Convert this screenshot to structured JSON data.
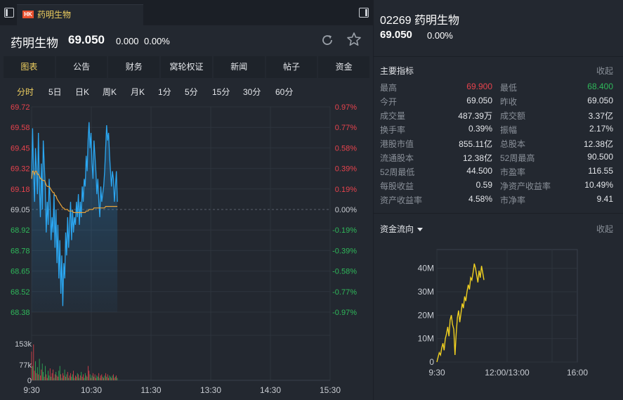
{
  "tab": {
    "badge": "HK",
    "title": "药明生物"
  },
  "quote": {
    "name": "药明生物",
    "price": "69.050",
    "change": "0.000",
    "change_pct": "0.00%"
  },
  "menu": [
    {
      "label": "图表",
      "active": true
    },
    {
      "label": "公告",
      "active": false
    },
    {
      "label": "财务",
      "active": false
    },
    {
      "label": "窝轮权证",
      "active": false
    },
    {
      "label": "新闻",
      "active": false
    },
    {
      "label": "帖子",
      "active": false
    },
    {
      "label": "资金",
      "active": false
    }
  ],
  "periods": [
    {
      "label": "分时",
      "active": true
    },
    {
      "label": "5日",
      "active": false
    },
    {
      "label": "日K",
      "active": false
    },
    {
      "label": "周K",
      "active": false
    },
    {
      "label": "月K",
      "active": false
    },
    {
      "label": "1分",
      "active": false
    },
    {
      "label": "5分",
      "active": false
    },
    {
      "label": "15分",
      "active": false
    },
    {
      "label": "30分",
      "active": false
    },
    {
      "label": "60分",
      "active": false
    }
  ],
  "right": {
    "title": "02269 药明生物",
    "price": "69.050",
    "change_pct": "0.00%",
    "metrics_title": "主要指标",
    "collapse_label": "收起",
    "metrics": [
      [
        {
          "label": "最高",
          "value": "69.900",
          "color": "red"
        },
        {
          "label": "最低",
          "value": "68.400",
          "color": "green"
        }
      ],
      [
        {
          "label": "今开",
          "value": "69.050",
          "color": ""
        },
        {
          "label": "昨收",
          "value": "69.050",
          "color": ""
        }
      ],
      [
        {
          "label": "成交量",
          "value": "487.39万",
          "color": ""
        },
        {
          "label": "成交额",
          "value": "3.37亿",
          "color": ""
        }
      ],
      [
        {
          "label": "换手率",
          "value": "0.39%",
          "color": ""
        },
        {
          "label": "振幅",
          "value": "2.17%",
          "color": ""
        }
      ],
      [
        {
          "label": "港股市值",
          "value": "855.11亿",
          "color": ""
        },
        {
          "label": "总股本",
          "value": "12.38亿",
          "color": ""
        }
      ],
      [
        {
          "label": "流通股本",
          "value": "12.38亿",
          "color": ""
        },
        {
          "label": "52周最高",
          "value": "90.500",
          "color": ""
        }
      ],
      [
        {
          "label": "52周最低",
          "value": "44.500",
          "color": ""
        },
        {
          "label": "市盈率",
          "value": "116.55",
          "color": ""
        }
      ],
      [
        {
          "label": "每股收益",
          "value": "0.59",
          "color": ""
        },
        {
          "label": "净资产收益率",
          "value": "10.49%",
          "color": ""
        }
      ],
      [
        {
          "label": "资产收益率",
          "value": "4.58%",
          "color": ""
        },
        {
          "label": "市净率",
          "value": "9.41",
          "color": ""
        }
      ]
    ],
    "flow_title": "资金流向",
    "flow_collapse_label": "收起"
  },
  "chart_data": [
    {
      "type": "line",
      "price_axis_labels": [
        "69.72",
        "69.58",
        "69.45",
        "69.32",
        "69.18",
        "69.05",
        "68.92",
        "68.78",
        "68.65",
        "68.52",
        "68.38"
      ],
      "pct_axis_labels": [
        "0.97%",
        "0.77%",
        "0.58%",
        "0.39%",
        "0.19%",
        "0.00%",
        "-0.19%",
        "-0.39%",
        "-0.58%",
        "-0.77%",
        "-0.97%"
      ],
      "ylim": [
        68.38,
        69.72
      ],
      "prev_close": 69.05,
      "volume_axis_labels": [
        "153k",
        "77k",
        "0"
      ],
      "volume_max": 153000,
      "x_labels": [
        "9:30",
        "10:30",
        "11:30",
        "13:30",
        "14:30",
        "15:30"
      ],
      "session_minutes": 390,
      "price_series": [
        69.25,
        69.58,
        69.3,
        69.1,
        69.45,
        69.3,
        69.15,
        69.55,
        69.2,
        69.0,
        69.35,
        69.05,
        69.5,
        69.35,
        69.2,
        68.9,
        69.1,
        68.95,
        69.25,
        69.1,
        68.85,
        69.0,
        68.9,
        69.15,
        68.8,
        69.05,
        68.7,
        68.95,
        68.6,
        68.85,
        68.5,
        68.75,
        68.42,
        68.7,
        68.6,
        68.9,
        68.75,
        69.0,
        68.8,
        68.95,
        69.1,
        68.85,
        69.05,
        68.9,
        69.0,
        68.95,
        69.1,
        69.0,
        69.15,
        68.95,
        69.1,
        69.0,
        69.2,
        69.1,
        69.25,
        69.2,
        69.4,
        69.3,
        69.5,
        69.62,
        69.45,
        69.55,
        69.35,
        69.25,
        69.5,
        69.4,
        69.3,
        69.15,
        69.25,
        69.1,
        69.0,
        69.2,
        69.1,
        69.15,
        69.2,
        69.3,
        69.45,
        69.6,
        69.5,
        69.55,
        69.4,
        69.3,
        69.2,
        69.3,
        69.25,
        69.1,
        69.2,
        69.3,
        69.1
      ],
      "avg_series": [
        69.25,
        69.3,
        69.3,
        69.28,
        69.3,
        69.3,
        69.28,
        69.28,
        69.27,
        69.25,
        69.25,
        69.24,
        69.24,
        69.24,
        69.23,
        69.21,
        69.2,
        69.2,
        69.2,
        69.19,
        69.18,
        69.17,
        69.16,
        69.16,
        69.14,
        69.14,
        69.12,
        69.11,
        69.1,
        69.09,
        69.08,
        69.07,
        69.06,
        69.06,
        69.05,
        69.05,
        69.05,
        69.05,
        69.04,
        69.04,
        69.04,
        69.04,
        69.04,
        69.03,
        69.03,
        69.03,
        69.03,
        69.03,
        69.03,
        69.03,
        69.03,
        69.03,
        69.03,
        69.03,
        69.03,
        69.03,
        69.04,
        69.04,
        69.04,
        69.05,
        69.05,
        69.05,
        69.05,
        69.05,
        69.06,
        69.06,
        69.06,
        69.06,
        69.06,
        69.06,
        69.06,
        69.06,
        69.06,
        69.06,
        69.06,
        69.06,
        69.07,
        69.07,
        69.07,
        69.07,
        69.07,
        69.07,
        69.07,
        69.07,
        69.07,
        69.07,
        69.07,
        69.07,
        69.07
      ],
      "volume_series": [
        120000,
        60000,
        150000,
        40000,
        80000,
        30000,
        55000,
        25000,
        90000,
        20000,
        45000,
        70000,
        35000,
        15000,
        60000,
        25000,
        10000,
        40000,
        20000,
        50000,
        15000,
        30000,
        45000,
        10000,
        25000,
        35000,
        20000,
        15000,
        40000,
        60000,
        25000,
        10000,
        30000,
        20000,
        45000,
        15000,
        25000,
        35000,
        10000,
        20000,
        30000,
        15000,
        25000,
        40000,
        10000,
        20000,
        15000,
        30000,
        25000,
        10000,
        20000,
        35000,
        15000,
        25000,
        10000,
        30000,
        20000,
        15000,
        60000,
        40000,
        25000,
        10000,
        20000,
        30000,
        15000,
        25000,
        10000,
        20000,
        15000,
        30000,
        10000,
        20000,
        25000,
        15000,
        10000,
        20000,
        30000,
        15000,
        25000,
        10000,
        20000,
        15000,
        10000,
        20000,
        25000,
        10000,
        15000,
        20000,
        10000
      ],
      "volume_up": [
        1,
        0,
        1,
        1,
        0,
        1,
        0,
        1,
        0,
        1,
        1,
        0,
        0,
        1,
        0,
        1,
        1,
        0,
        0,
        1,
        0,
        1,
        1,
        0,
        1,
        0,
        1,
        1,
        0,
        0,
        1,
        0,
        1,
        1,
        0,
        1,
        0,
        1,
        0,
        1,
        1,
        0,
        0,
        1,
        0,
        1,
        1,
        0,
        1,
        0,
        1,
        0,
        1,
        1,
        0,
        0,
        1,
        0,
        1,
        1,
        0,
        1,
        0,
        1,
        0,
        1,
        1,
        0,
        0,
        1,
        0,
        1,
        1,
        0,
        1,
        0,
        1,
        0,
        1,
        1,
        0,
        0,
        1,
        0,
        1,
        1,
        0,
        1,
        0
      ]
    },
    {
      "type": "line",
      "title": "资金流向",
      "y_labels": [
        "40M",
        "30M",
        "20M",
        "10M",
        "0"
      ],
      "ylim": [
        0,
        45000000
      ],
      "x_labels": [
        "9:30",
        "12:00/13:00",
        "16:00"
      ],
      "series": [
        {
          "values": [
            0,
            2000000,
            4000000,
            3000000,
            6000000,
            8000000,
            5000000,
            10000000,
            12000000,
            15000000,
            11000000,
            18000000,
            20000000,
            16000000,
            14000000,
            3000000,
            12000000,
            19000000,
            22000000,
            17000000,
            21000000,
            25000000,
            23000000,
            28000000,
            26000000,
            30000000,
            33000000,
            31000000,
            36000000,
            35000000,
            38000000,
            42000000,
            40000000,
            37000000,
            34000000,
            39000000,
            36000000,
            41000000,
            38000000,
            35000000
          ]
        }
      ]
    }
  ]
}
